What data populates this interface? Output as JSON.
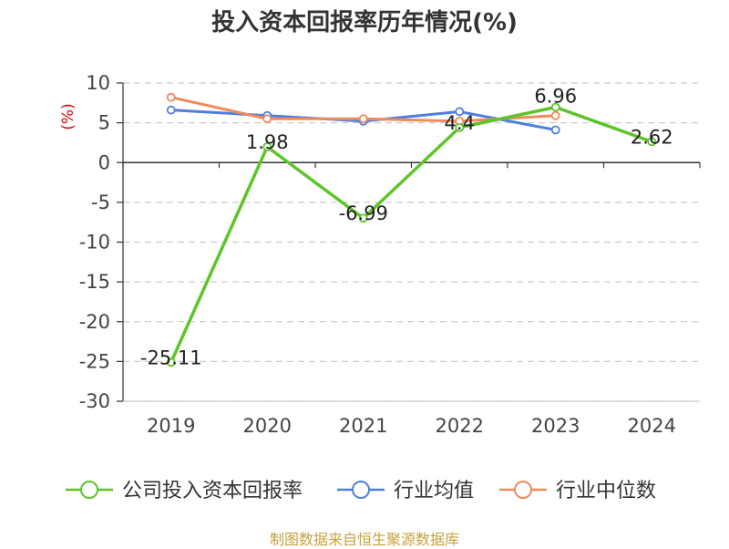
{
  "footer": {
    "source": "制图数据来自恒生聚源数据库"
  },
  "chart_data": {
    "type": "line",
    "title": "投入资本回报率历年情况(%)",
    "ylabel": "(%)",
    "xlabel": "",
    "categories": [
      "2019",
      "2020",
      "2021",
      "2022",
      "2023",
      "2024"
    ],
    "ylim": [
      -30,
      10
    ],
    "yticks": [
      10,
      5,
      0,
      -5,
      -10,
      -15,
      -20,
      -25,
      -30
    ],
    "grid": "horizontal-dashed",
    "legend_position": "bottom",
    "series": [
      {
        "name": "公司投入资本回报率",
        "color": "#5ec42a",
        "values": [
          -25.11,
          1.98,
          -6.99,
          4.4,
          6.96,
          2.62
        ],
        "labels": [
          "-25.11",
          "1.98",
          "-6.99",
          "4.4",
          "6.96",
          "2.62"
        ]
      },
      {
        "name": "行业均值",
        "color": "#4f7fdc",
        "values": [
          6.6,
          5.9,
          5.2,
          6.4,
          4.1,
          null
        ]
      },
      {
        "name": "行业中位数",
        "color": "#f08a5a",
        "values": [
          8.2,
          5.5,
          5.5,
          5.2,
          5.9,
          null
        ]
      }
    ]
  }
}
